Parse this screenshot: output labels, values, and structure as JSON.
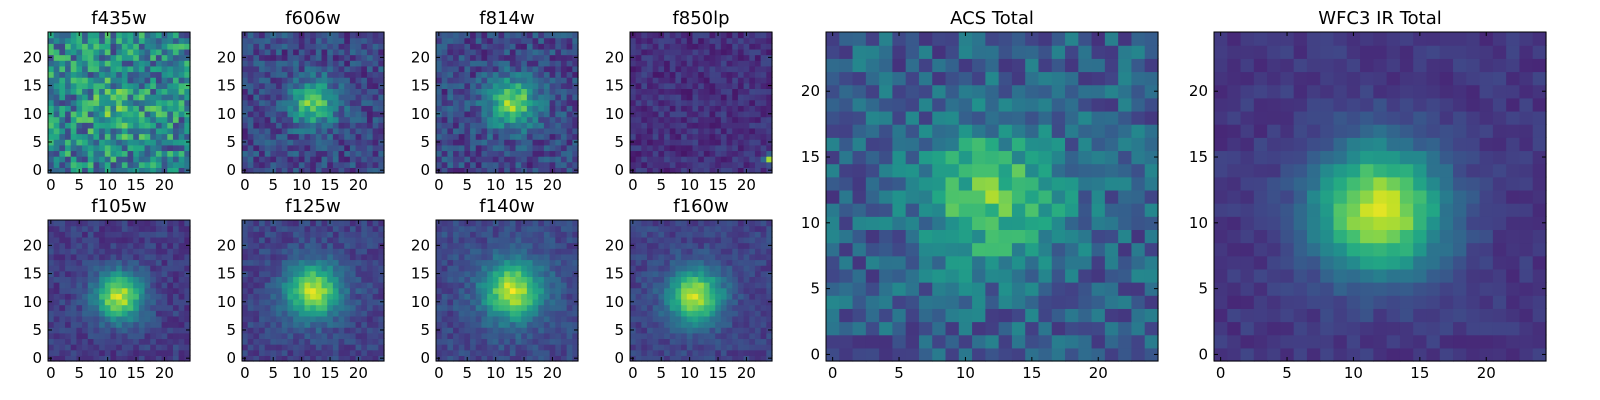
{
  "figure": {
    "background": "#ffffff",
    "colormap": "viridis"
  },
  "chart_data": [
    {
      "type": "heatmap",
      "title": "f435w",
      "grid_size": 25,
      "xlim": [
        0,
        24
      ],
      "ylim": [
        0,
        24
      ],
      "xticks": [
        "0",
        "5",
        "10",
        "15",
        "20"
      ],
      "yticks": [
        "0",
        "5",
        "10",
        "15",
        "20"
      ],
      "pattern": "noise",
      "peak": [
        12,
        11
      ],
      "spread": 4.0,
      "amplitude": 0.15,
      "base": 0.45,
      "noise": 0.28,
      "seed": 11
    },
    {
      "type": "heatmap",
      "title": "f606w",
      "grid_size": 25,
      "xlim": [
        0,
        24
      ],
      "ylim": [
        0,
        24
      ],
      "xticks": [
        "0",
        "5",
        "10",
        "15",
        "20"
      ],
      "yticks": [
        "0",
        "5",
        "10",
        "15",
        "20"
      ],
      "pattern": "point-source",
      "peak": [
        12,
        12
      ],
      "spread": 2.8,
      "amplitude": 0.55,
      "base": 0.22,
      "noise": 0.14,
      "seed": 23
    },
    {
      "type": "heatmap",
      "title": "f814w",
      "grid_size": 25,
      "xlim": [
        0,
        24
      ],
      "ylim": [
        0,
        24
      ],
      "xticks": [
        "0",
        "5",
        "10",
        "15",
        "20"
      ],
      "yticks": [
        "0",
        "5",
        "10",
        "15",
        "20"
      ],
      "pattern": "point-source",
      "peak": [
        13,
        12
      ],
      "spread": 3.0,
      "amplitude": 0.6,
      "base": 0.22,
      "noise": 0.14,
      "seed": 37
    },
    {
      "type": "heatmap",
      "title": "f850lp",
      "grid_size": 25,
      "xlim": [
        0,
        24
      ],
      "ylim": [
        0,
        24
      ],
      "xticks": [
        "0",
        "5",
        "10",
        "15",
        "20"
      ],
      "yticks": [
        "0",
        "5",
        "10",
        "15",
        "20"
      ],
      "pattern": "noise",
      "peak": [
        24,
        2
      ],
      "spread": 0.6,
      "amplitude": 0.75,
      "base": 0.14,
      "noise": 0.08,
      "seed": 41
    },
    {
      "type": "heatmap",
      "title": "f105w",
      "grid_size": 25,
      "xlim": [
        0,
        24
      ],
      "ylim": [
        0,
        24
      ],
      "xticks": [
        "0",
        "5",
        "10",
        "15",
        "20"
      ],
      "yticks": [
        "0",
        "5",
        "10",
        "15",
        "20"
      ],
      "pattern": "point-source",
      "peak": [
        12,
        11
      ],
      "spread": 3.0,
      "amplitude": 0.72,
      "base": 0.18,
      "noise": 0.08,
      "seed": 53
    },
    {
      "type": "heatmap",
      "title": "f125w",
      "grid_size": 25,
      "xlim": [
        0,
        24
      ],
      "ylim": [
        0,
        24
      ],
      "xticks": [
        "0",
        "5",
        "10",
        "15",
        "20"
      ],
      "yticks": [
        "0",
        "5",
        "10",
        "15",
        "20"
      ],
      "pattern": "point-source",
      "peak": [
        12,
        12
      ],
      "spread": 3.4,
      "amplitude": 0.7,
      "base": 0.2,
      "noise": 0.08,
      "seed": 67
    },
    {
      "type": "heatmap",
      "title": "f140w",
      "grid_size": 25,
      "xlim": [
        0,
        24
      ],
      "ylim": [
        0,
        24
      ],
      "xticks": [
        "0",
        "5",
        "10",
        "15",
        "20"
      ],
      "yticks": [
        "0",
        "5",
        "10",
        "15",
        "20"
      ],
      "pattern": "point-source",
      "peak": [
        13,
        12
      ],
      "spread": 3.6,
      "amplitude": 0.7,
      "base": 0.22,
      "noise": 0.08,
      "seed": 79
    },
    {
      "type": "heatmap",
      "title": "f160w",
      "grid_size": 25,
      "xlim": [
        0,
        24
      ],
      "ylim": [
        0,
        24
      ],
      "xticks": [
        "0",
        "5",
        "10",
        "15",
        "20"
      ],
      "yticks": [
        "0",
        "5",
        "10",
        "15",
        "20"
      ],
      "pattern": "point-source",
      "peak": [
        11,
        11
      ],
      "spread": 3.3,
      "amplitude": 0.72,
      "base": 0.2,
      "noise": 0.07,
      "seed": 83
    },
    {
      "type": "heatmap",
      "title": "ACS Total",
      "grid_size": 25,
      "xlim": [
        0,
        24
      ],
      "ylim": [
        0,
        24
      ],
      "xticks": [
        "0",
        "5",
        "10",
        "15",
        "20"
      ],
      "yticks": [
        "0",
        "5",
        "10",
        "15",
        "20"
      ],
      "pattern": "point-source",
      "peak": [
        12,
        12
      ],
      "spread": 3.6,
      "amplitude": 0.45,
      "base": 0.3,
      "noise": 0.16,
      "seed": 97
    },
    {
      "type": "heatmap",
      "title": "WFC3 IR Total",
      "grid_size": 25,
      "xlim": [
        0,
        24
      ],
      "ylim": [
        0,
        24
      ],
      "xticks": [
        "0",
        "5",
        "10",
        "15",
        "20"
      ],
      "yticks": [
        "0",
        "5",
        "10",
        "15",
        "20"
      ],
      "pattern": "point-source",
      "peak": [
        12,
        11
      ],
      "spread": 3.4,
      "amplitude": 0.78,
      "base": 0.16,
      "noise": 0.05,
      "seed": 101
    }
  ]
}
